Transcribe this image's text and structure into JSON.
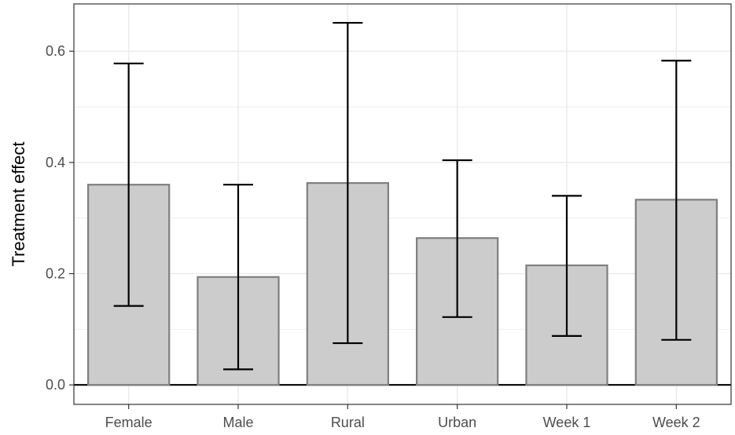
{
  "chart_data": {
    "type": "bar",
    "title": "",
    "xlabel": "",
    "ylabel": "Treatment effect",
    "categories": [
      "Female",
      "Male",
      "Rural",
      "Urban",
      "Week 1",
      "Week 2"
    ],
    "values": [
      0.36,
      0.194,
      0.363,
      0.264,
      0.215,
      0.333
    ],
    "error_low": [
      0.142,
      0.028,
      0.075,
      0.122,
      0.088,
      0.081
    ],
    "error_high": [
      0.578,
      0.36,
      0.651,
      0.404,
      0.34,
      0.583
    ],
    "ylim": [
      -0.035,
      0.685
    ],
    "yticks": [
      0.0,
      0.2,
      0.4,
      0.6
    ],
    "ytick_labels": [
      "0.0",
      "0.2",
      "0.4",
      "0.6"
    ],
    "grid": true,
    "legend": "none",
    "colors": {
      "bar_fill": "#cccccc",
      "bar_stroke": "#7f7f7f",
      "errorbar": "#000000",
      "grid": "#ebebeb",
      "panel_border": "#333333",
      "zero_line": "#000000"
    }
  }
}
